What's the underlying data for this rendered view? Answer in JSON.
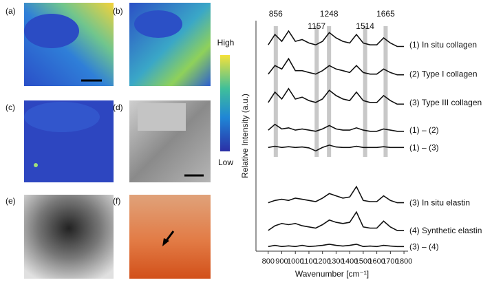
{
  "panels": [
    {
      "label": "(a)"
    },
    {
      "label": "(b)"
    },
    {
      "label": "(c)"
    },
    {
      "label": "(d)"
    },
    {
      "label": "(e)"
    },
    {
      "label": "(f)"
    }
  ],
  "colorbar": {
    "high": "High",
    "low": "Low"
  },
  "chart_data": {
    "type": "line",
    "xlabel": "Wavenumber [cm⁻¹]",
    "ylabel": "Relative Intensity (a.u.)",
    "x": [
      800,
      850,
      900,
      950,
      1000,
      1050,
      1100,
      1150,
      1200,
      1250,
      1300,
      1350,
      1400,
      1450,
      1500,
      1550,
      1600,
      1650,
      1700,
      1750,
      1800
    ],
    "xlim": [
      710,
      1830
    ],
    "xticks": [
      800,
      900,
      1000,
      1100,
      1200,
      1300,
      1400,
      1500,
      1600,
      1700,
      1800
    ],
    "ylim": [
      0,
      100
    ],
    "peaks": [
      856,
      1157,
      1248,
      1514,
      1665
    ],
    "peak_color": "#c8c8c8",
    "series": [
      {
        "name": "(1) In situ collagen",
        "color": "#111111",
        "values": [
          89.5,
          94,
          91,
          95.5,
          91,
          91.8,
          90.3,
          89.5,
          91,
          94.8,
          92.5,
          91,
          90.3,
          94,
          90.3,
          89.5,
          89.5,
          92.5,
          90.3,
          88.8,
          88.8
        ]
      },
      {
        "name": "(2) Type I collagen",
        "color": "#111111",
        "values": [
          76.8,
          80.5,
          79,
          83.5,
          78.3,
          78.3,
          77.5,
          76.8,
          78.3,
          80.5,
          79,
          78.3,
          77.5,
          80.5,
          77.5,
          76.8,
          76.8,
          79,
          77.5,
          76.5,
          76.5
        ]
      },
      {
        "name": "(3) Type III collagen",
        "color": "#111111",
        "values": [
          64.5,
          69,
          66,
          70.5,
          66,
          66.8,
          65.3,
          64.5,
          66,
          69.8,
          67.5,
          66,
          65.3,
          69,
          65.3,
          64.5,
          64.5,
          67.5,
          65.3,
          63.8,
          63.8
        ]
      },
      {
        "name": "(1) – (2)",
        "color": "#111111",
        "values": [
          52.5,
          55,
          53,
          53.5,
          52.5,
          53,
          52.5,
          52,
          53,
          54.5,
          53,
          52.5,
          52.5,
          53.5,
          52.5,
          52,
          52,
          53,
          52.5,
          52,
          52
        ]
      },
      {
        "name": "(1) – (3)",
        "color": "#111111",
        "values": [
          45,
          45.5,
          45,
          45.3,
          45,
          45.2,
          44.8,
          43.5,
          45,
          46,
          45.2,
          45,
          45,
          45.5,
          45,
          45,
          45,
          45.3,
          45,
          45,
          45
        ]
      },
      {
        "name": "(3) In situ elastin",
        "color": "#111111",
        "values": [
          21,
          22,
          22.5,
          22,
          23,
          22.5,
          22,
          21.5,
          23,
          25,
          24,
          23,
          23.5,
          28,
          22,
          21.5,
          21.5,
          24,
          22,
          21,
          21
        ]
      },
      {
        "name": "(4) Synthetic elastin",
        "color": "#111111",
        "values": [
          9,
          11,
          12,
          11.5,
          12,
          11,
          10.5,
          10,
          11.5,
          13.5,
          12.5,
          12,
          12.5,
          17,
          10.5,
          10,
          10,
          13,
          10.5,
          9,
          9
        ]
      },
      {
        "name": "(3) – (4)",
        "color": "#111111",
        "values": [
          2,
          2.5,
          2,
          2.3,
          2,
          2.5,
          2,
          2.2,
          2.5,
          3,
          2.5,
          2.2,
          2.5,
          3,
          2,
          2.2,
          2,
          2.5,
          2.2,
          2,
          2
        ]
      }
    ]
  }
}
